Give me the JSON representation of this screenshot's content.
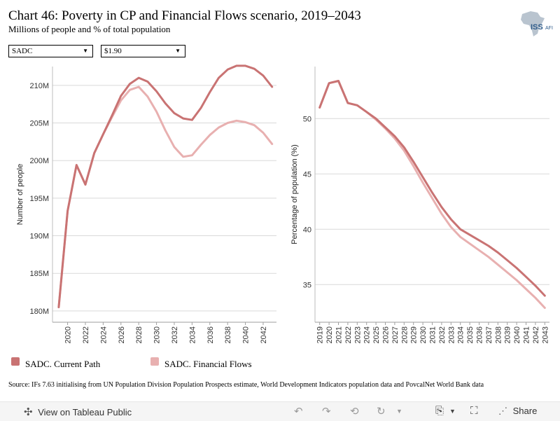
{
  "title": "Chart 46: Poverty in CP and Financial Flows scenario, 2019–2043",
  "subtitle": "Millions of people and % of total population",
  "logo": {
    "text": "ISS",
    "suffix": "AFI"
  },
  "filters": {
    "region": "SADC",
    "poverty_line": "$1.90"
  },
  "colors": {
    "current_path": "#c97373",
    "financial_flows": "#e8b0b0"
  },
  "legend": [
    {
      "label": "SADC. Current Path",
      "color": "#c97373"
    },
    {
      "label": "SADC. Financial Flows",
      "color": "#e8b0b0"
    }
  ],
  "chart_data": [
    {
      "type": "line",
      "ylabel": "Number of people",
      "ylim": [
        178.5,
        212.5
      ],
      "yticks": [
        180,
        185,
        190,
        195,
        200,
        205,
        210
      ],
      "ytick_labels": [
        "180M",
        "185M",
        "190M",
        "195M",
        "200M",
        "205M",
        "210M"
      ],
      "xlim": [
        2018.3,
        2043.5
      ],
      "xticks": [
        2020,
        2022,
        2024,
        2026,
        2028,
        2030,
        2032,
        2034,
        2036,
        2038,
        2040,
        2042
      ],
      "grid": true,
      "x": [
        2019,
        2020,
        2021,
        2022,
        2023,
        2024,
        2025,
        2026,
        2027,
        2028,
        2029,
        2030,
        2031,
        2032,
        2033,
        2034,
        2035,
        2036,
        2037,
        2038,
        2039,
        2040,
        2041,
        2042,
        2043
      ],
      "series": [
        {
          "name": "SADC. Current Path",
          "values": [
            180.5,
            193.3,
            199.4,
            196.8,
            201.0,
            203.5,
            206.0,
            208.6,
            210.2,
            211.0,
            210.5,
            209.2,
            207.6,
            206.3,
            205.6,
            205.4,
            207.0,
            209.1,
            211.0,
            212.1,
            212.6,
            212.6,
            212.2,
            211.3,
            209.8
          ]
        },
        {
          "name": "SADC. Financial Flows",
          "values": [
            180.5,
            193.3,
            199.4,
            196.8,
            201.0,
            203.5,
            205.8,
            208.0,
            209.4,
            209.8,
            208.5,
            206.5,
            204.0,
            201.8,
            200.5,
            200.7,
            202.1,
            203.4,
            204.4,
            205.0,
            205.3,
            205.1,
            204.7,
            203.7,
            202.2
          ]
        }
      ]
    },
    {
      "type": "line",
      "ylabel": "Percentage of population (%)",
      "ylim": [
        31.6,
        54.7
      ],
      "yticks": [
        35,
        40,
        45,
        50
      ],
      "ytick_labels": [
        "35",
        "40",
        "45",
        "50"
      ],
      "xlim": [
        2018.5,
        2043.5
      ],
      "xticks": [
        2019,
        2020,
        2021,
        2022,
        2023,
        2024,
        2025,
        2026,
        2027,
        2028,
        2029,
        2030,
        2031,
        2032,
        2033,
        2034,
        2035,
        2036,
        2037,
        2038,
        2039,
        2040,
        2041,
        2042,
        2043
      ],
      "grid": true,
      "x": [
        2019,
        2020,
        2021,
        2022,
        2023,
        2024,
        2025,
        2026,
        2027,
        2028,
        2029,
        2030,
        2031,
        2032,
        2033,
        2034,
        2035,
        2036,
        2037,
        2038,
        2039,
        2040,
        2041,
        2042,
        2043
      ],
      "series": [
        {
          "name": "SADC. Current Path",
          "values": [
            51.0,
            53.2,
            53.4,
            51.4,
            51.2,
            50.6,
            50.0,
            49.2,
            48.4,
            47.4,
            46.1,
            44.7,
            43.3,
            42.0,
            40.9,
            40.0,
            39.5,
            39.0,
            38.5,
            37.9,
            37.2,
            36.5,
            35.7,
            34.9,
            34.0
          ]
        },
        {
          "name": "SADC. Financial Flows",
          "values": [
            51.0,
            53.2,
            53.4,
            51.4,
            51.2,
            50.6,
            49.9,
            49.1,
            48.2,
            47.1,
            45.7,
            44.2,
            42.8,
            41.4,
            40.2,
            39.3,
            38.7,
            38.1,
            37.5,
            36.8,
            36.1,
            35.4,
            34.6,
            33.8,
            32.9
          ]
        }
      ]
    }
  ],
  "source": "Source: IFs 7.63 initialising from UN Population Division Population Prospects estimate, World Development Indicators population data and PovcalNet World Bank data",
  "footer": {
    "view_label": "View on Tableau Public",
    "share_label": "Share"
  }
}
